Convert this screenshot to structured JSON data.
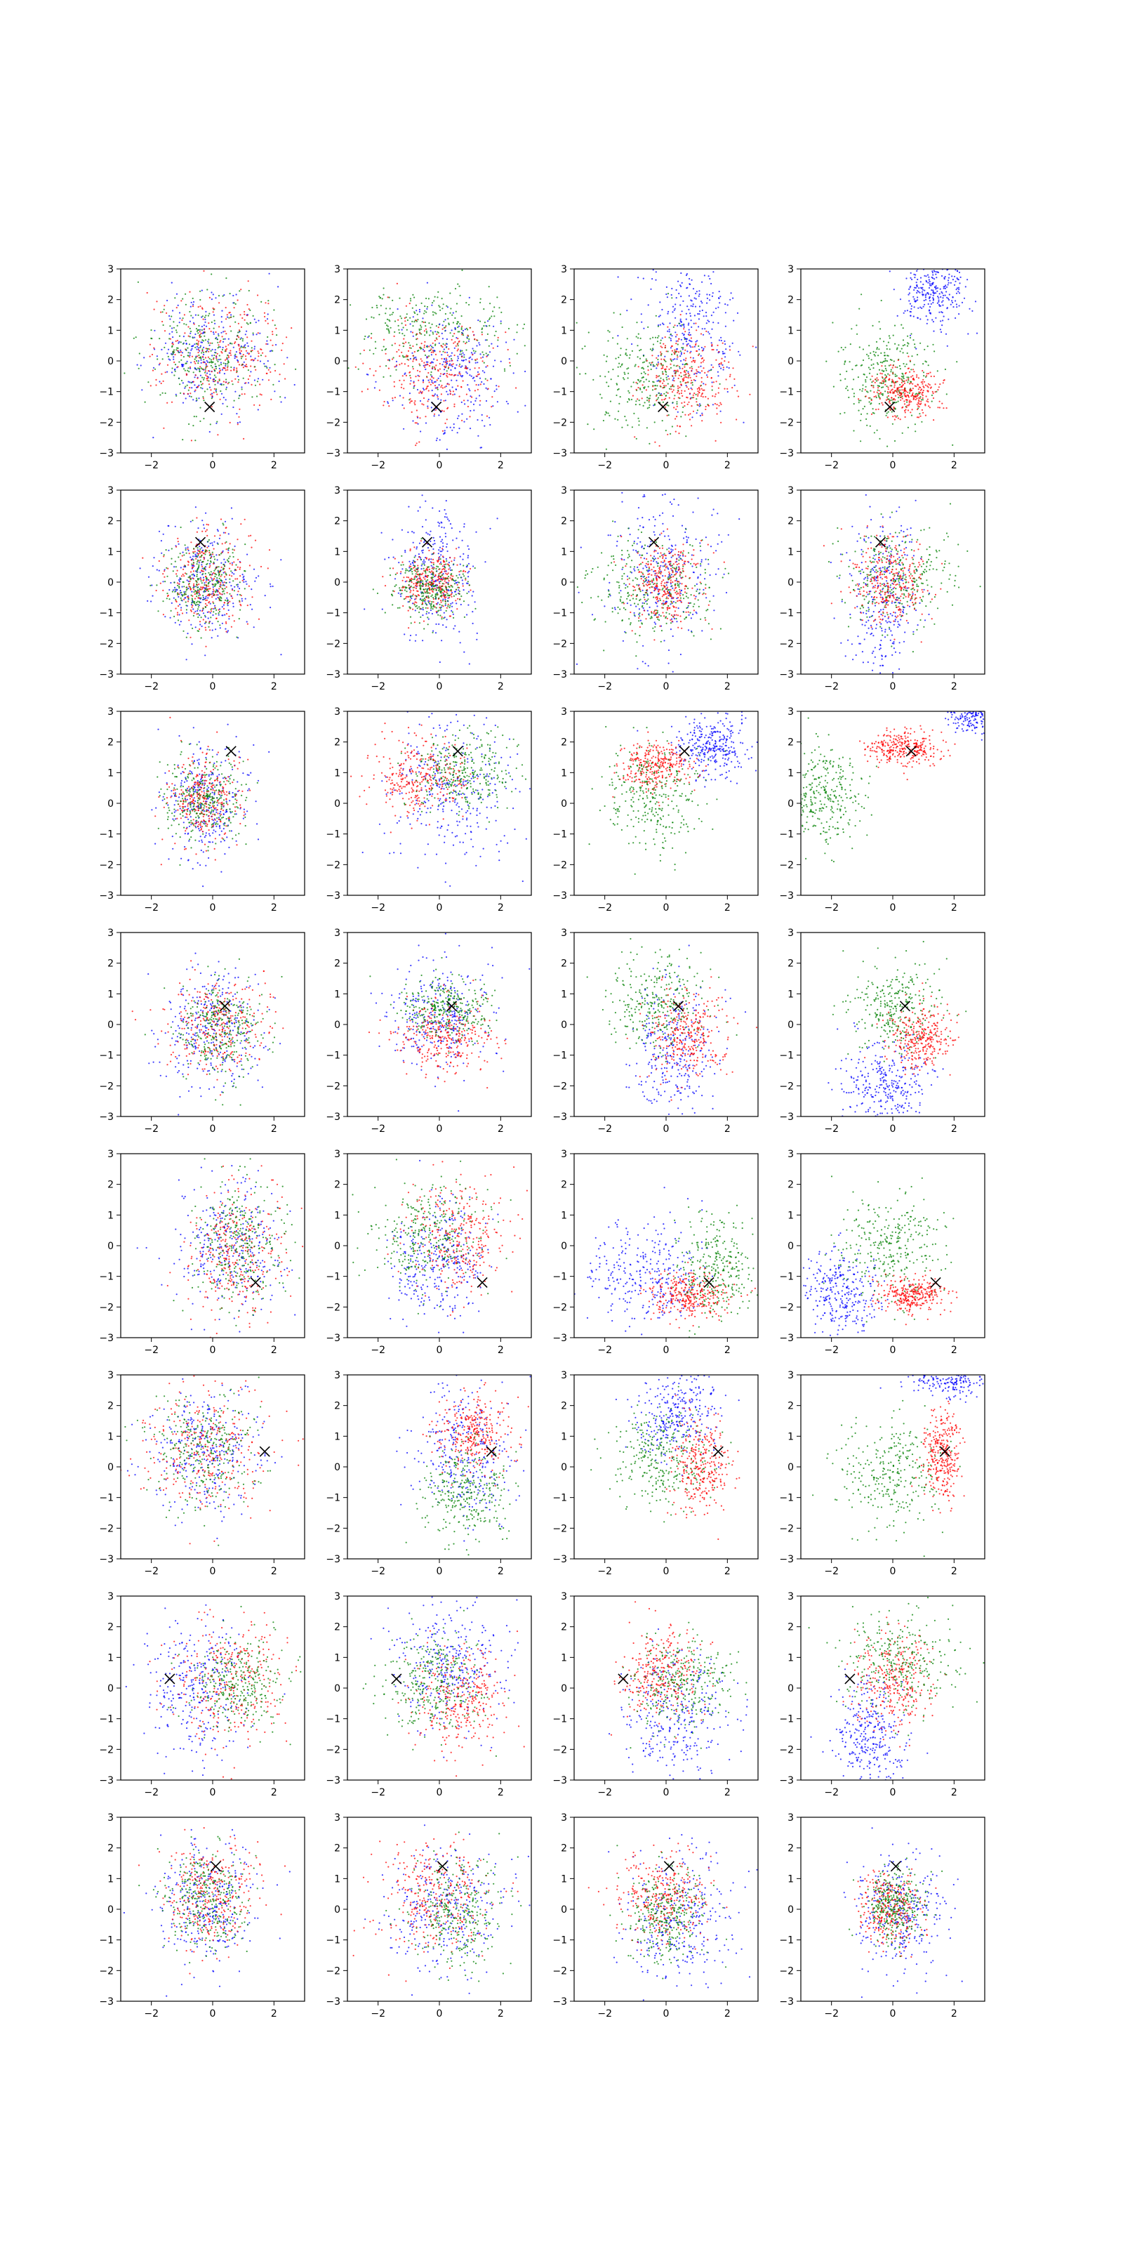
{
  "chart_data": {
    "type": "scatter",
    "layout_grid": {
      "rows": 8,
      "cols": 4
    },
    "shared_axes": {
      "xlim": [
        -3,
        3
      ],
      "ylim": [
        -3,
        3
      ],
      "xticks": [
        -2,
        0,
        2
      ],
      "yticks": [
        -3,
        -2,
        -1,
        0,
        1,
        2,
        3
      ],
      "grid": false
    },
    "colors": {
      "series_blue": "#0000ff",
      "series_red": "#ff0000",
      "series_green": "#008000",
      "marker": "#000000",
      "axis": "#000000"
    },
    "marker_symbol": "x",
    "rows": [
      {
        "marker": [
          -0.1,
          -1.5
        ],
        "panels": [
          [
            {
              "color": "blue",
              "cx": 0.0,
              "cy": 0.2,
              "sx": 1.0,
              "sy": 1.0,
              "n": 300
            },
            {
              "color": "red",
              "cx": 0.3,
              "cy": 0.2,
              "sx": 1.0,
              "sy": 1.0,
              "n": 300
            },
            {
              "color": "green",
              "cx": -0.2,
              "cy": 0.3,
              "sx": 1.0,
              "sy": 1.0,
              "n": 300
            }
          ],
          [
            {
              "color": "green",
              "cx": -0.1,
              "cy": 1.0,
              "sx": 1.2,
              "sy": 0.8,
              "n": 300
            },
            {
              "color": "blue",
              "cx": 0.4,
              "cy": -0.4,
              "sx": 1.0,
              "sy": 1.0,
              "n": 300
            },
            {
              "color": "red",
              "cx": -0.2,
              "cy": -0.3,
              "sx": 1.0,
              "sy": 0.9,
              "n": 300
            }
          ],
          [
            {
              "color": "blue",
              "cx": 0.8,
              "cy": 1.0,
              "sx": 0.8,
              "sy": 1.2,
              "n": 300
            },
            {
              "color": "green",
              "cx": -0.5,
              "cy": -0.6,
              "sx": 0.9,
              "sy": 0.9,
              "n": 300
            },
            {
              "color": "red",
              "cx": 0.7,
              "cy": -0.6,
              "sx": 0.7,
              "sy": 0.8,
              "n": 300
            }
          ],
          [
            {
              "color": "blue",
              "cx": 1.3,
              "cy": 2.3,
              "sx": 0.6,
              "sy": 0.6,
              "n": 280
            },
            {
              "color": "green",
              "cx": -0.2,
              "cy": -0.5,
              "sx": 0.8,
              "sy": 0.8,
              "n": 320
            },
            {
              "color": "red",
              "cx": 0.4,
              "cy": -1.0,
              "sx": 0.6,
              "sy": 0.4,
              "n": 300
            }
          ]
        ]
      },
      {
        "marker": [
          -0.4,
          1.3
        ],
        "panels": [
          [
            {
              "color": "blue",
              "cx": -0.2,
              "cy": 0.0,
              "sx": 0.8,
              "sy": 1.0,
              "n": 300
            },
            {
              "color": "red",
              "cx": -0.2,
              "cy": 0.1,
              "sx": 0.7,
              "sy": 0.8,
              "n": 300
            },
            {
              "color": "green",
              "cx": -0.3,
              "cy": 0.0,
              "sx": 0.6,
              "sy": 0.7,
              "n": 300
            }
          ],
          [
            {
              "color": "blue",
              "cx": -0.1,
              "cy": 0.3,
              "sx": 0.7,
              "sy": 1.1,
              "n": 300
            },
            {
              "color": "red",
              "cx": -0.2,
              "cy": 0.0,
              "sx": 0.5,
              "sy": 0.5,
              "n": 300
            },
            {
              "color": "green",
              "cx": -0.3,
              "cy": -0.2,
              "sx": 0.6,
              "sy": 0.5,
              "n": 300
            }
          ],
          [
            {
              "color": "blue",
              "cx": -0.1,
              "cy": 0.2,
              "sx": 0.9,
              "sy": 1.3,
              "n": 300
            },
            {
              "color": "green",
              "cx": -0.4,
              "cy": -0.2,
              "sx": 1.0,
              "sy": 0.8,
              "n": 300
            },
            {
              "color": "red",
              "cx": 0.0,
              "cy": 0.0,
              "sx": 0.6,
              "sy": 0.7,
              "n": 300
            }
          ],
          [
            {
              "color": "blue",
              "cx": -0.3,
              "cy": -0.5,
              "sx": 0.6,
              "sy": 1.3,
              "n": 300
            },
            {
              "color": "green",
              "cx": 0.2,
              "cy": 0.2,
              "sx": 0.9,
              "sy": 0.8,
              "n": 300
            },
            {
              "color": "red",
              "cx": -0.1,
              "cy": 0.1,
              "sx": 0.6,
              "sy": 0.7,
              "n": 300
            }
          ]
        ]
      },
      {
        "marker": [
          0.6,
          1.7
        ],
        "panels": [
          [
            {
              "color": "blue",
              "cx": -0.3,
              "cy": 0.0,
              "sx": 0.7,
              "sy": 1.0,
              "n": 300
            },
            {
              "color": "red",
              "cx": -0.3,
              "cy": 0.1,
              "sx": 0.6,
              "sy": 0.7,
              "n": 300
            },
            {
              "color": "green",
              "cx": -0.3,
              "cy": 0.1,
              "sx": 0.6,
              "sy": 0.7,
              "n": 300
            }
          ],
          [
            {
              "color": "blue",
              "cx": 0.5,
              "cy": 0.4,
              "sx": 1.1,
              "sy": 1.2,
              "n": 300
            },
            {
              "color": "red",
              "cx": -0.6,
              "cy": 0.8,
              "sx": 0.8,
              "sy": 0.6,
              "n": 300
            },
            {
              "color": "green",
              "cx": 0.8,
              "cy": 1.1,
              "sx": 0.8,
              "sy": 0.6,
              "n": 300
            }
          ],
          [
            {
              "color": "blue",
              "cx": 1.5,
              "cy": 1.9,
              "sx": 0.6,
              "sy": 0.5,
              "n": 300
            },
            {
              "color": "red",
              "cx": -0.3,
              "cy": 1.2,
              "sx": 0.6,
              "sy": 0.4,
              "n": 300
            },
            {
              "color": "green",
              "cx": -0.4,
              "cy": 0.2,
              "sx": 0.8,
              "sy": 0.9,
              "n": 300
            }
          ],
          [
            {
              "color": "blue",
              "cx": 2.6,
              "cy": 2.9,
              "sx": 0.4,
              "sy": 0.3,
              "n": 200
            },
            {
              "color": "red",
              "cx": 0.3,
              "cy": 1.8,
              "sx": 0.6,
              "sy": 0.3,
              "n": 300
            },
            {
              "color": "green",
              "cx": -2.2,
              "cy": 0.2,
              "sx": 0.6,
              "sy": 0.8,
              "n": 300
            }
          ]
        ]
      },
      {
        "marker": [
          0.4,
          0.6
        ],
        "panels": [
          [
            {
              "color": "blue",
              "cx": 0.0,
              "cy": -0.1,
              "sx": 0.8,
              "sy": 1.0,
              "n": 300
            },
            {
              "color": "red",
              "cx": 0.1,
              "cy": -0.1,
              "sx": 0.8,
              "sy": 0.8,
              "n": 300
            },
            {
              "color": "green",
              "cx": 0.2,
              "cy": -0.2,
              "sx": 0.7,
              "sy": 0.8,
              "n": 300
            }
          ],
          [
            {
              "color": "blue",
              "cx": 0.0,
              "cy": 0.2,
              "sx": 0.8,
              "sy": 0.9,
              "n": 300
            },
            {
              "color": "red",
              "cx": 0.2,
              "cy": -0.4,
              "sx": 0.8,
              "sy": 0.6,
              "n": 300
            },
            {
              "color": "green",
              "cx": 0.2,
              "cy": 0.5,
              "sx": 0.7,
              "sy": 0.5,
              "n": 300
            }
          ],
          [
            {
              "color": "blue",
              "cx": 0.3,
              "cy": -1.0,
              "sx": 0.7,
              "sy": 1.2,
              "n": 300
            },
            {
              "color": "green",
              "cx": -0.2,
              "cy": 0.7,
              "sx": 0.8,
              "sy": 0.8,
              "n": 300
            },
            {
              "color": "red",
              "cx": 0.7,
              "cy": -0.4,
              "sx": 0.6,
              "sy": 0.7,
              "n": 300
            }
          ],
          [
            {
              "color": "blue",
              "cx": -0.3,
              "cy": -2.0,
              "sx": 0.7,
              "sy": 0.7,
              "n": 300
            },
            {
              "color": "green",
              "cx": 0.1,
              "cy": 0.5,
              "sx": 0.8,
              "sy": 0.7,
              "n": 300
            },
            {
              "color": "red",
              "cx": 0.9,
              "cy": -0.4,
              "sx": 0.5,
              "sy": 0.5,
              "n": 300
            }
          ]
        ]
      },
      {
        "marker": [
          1.4,
          -1.2
        ],
        "panels": [
          [
            {
              "color": "blue",
              "cx": 0.5,
              "cy": 0.0,
              "sx": 0.9,
              "sy": 1.1,
              "n": 300
            },
            {
              "color": "red",
              "cx": 0.8,
              "cy": -0.2,
              "sx": 0.8,
              "sy": 1.0,
              "n": 300
            },
            {
              "color": "green",
              "cx": 0.9,
              "cy": 0.0,
              "sx": 0.8,
              "sy": 1.0,
              "n": 300
            }
          ],
          [
            {
              "color": "blue",
              "cx": 0.0,
              "cy": -0.5,
              "sx": 0.8,
              "sy": 1.0,
              "n": 300
            },
            {
              "color": "red",
              "cx": 0.6,
              "cy": 0.3,
              "sx": 0.8,
              "sy": 0.9,
              "n": 300
            },
            {
              "color": "green",
              "cx": -0.4,
              "cy": 0.4,
              "sx": 0.9,
              "sy": 0.8,
              "n": 300
            }
          ],
          [
            {
              "color": "blue",
              "cx": -0.7,
              "cy": -0.9,
              "sx": 1.0,
              "sy": 0.9,
              "n": 300
            },
            {
              "color": "green",
              "cx": 1.6,
              "cy": -0.7,
              "sx": 0.6,
              "sy": 0.8,
              "n": 300
            },
            {
              "color": "red",
              "cx": 0.8,
              "cy": -1.6,
              "sx": 0.6,
              "sy": 0.4,
              "n": 300
            }
          ],
          [
            {
              "color": "blue",
              "cx": -1.6,
              "cy": -1.6,
              "sx": 0.6,
              "sy": 0.7,
              "n": 300
            },
            {
              "color": "green",
              "cx": -0.1,
              "cy": 0.0,
              "sx": 0.8,
              "sy": 0.8,
              "n": 300
            },
            {
              "color": "red",
              "cx": 0.6,
              "cy": -1.6,
              "sx": 0.6,
              "sy": 0.3,
              "n": 300
            }
          ]
        ]
      },
      {
        "marker": [
          1.7,
          0.5
        ],
        "panels": [
          [
            {
              "color": "blue",
              "cx": -0.2,
              "cy": 0.5,
              "sx": 0.9,
              "sy": 1.0,
              "n": 300
            },
            {
              "color": "red",
              "cx": -0.2,
              "cy": 0.5,
              "sx": 1.0,
              "sy": 1.0,
              "n": 300
            },
            {
              "color": "green",
              "cx": -0.3,
              "cy": 0.6,
              "sx": 0.9,
              "sy": 0.9,
              "n": 300
            }
          ],
          [
            {
              "color": "blue",
              "cx": 0.8,
              "cy": 0.5,
              "sx": 0.8,
              "sy": 1.2,
              "n": 300
            },
            {
              "color": "red",
              "cx": 1.1,
              "cy": 1.1,
              "sx": 0.6,
              "sy": 0.6,
              "n": 300
            },
            {
              "color": "green",
              "cx": 0.8,
              "cy": -0.8,
              "sx": 0.7,
              "sy": 0.8,
              "n": 300
            }
          ],
          [
            {
              "color": "blue",
              "cx": 0.4,
              "cy": 1.7,
              "sx": 0.7,
              "sy": 0.7,
              "n": 300
            },
            {
              "color": "green",
              "cx": -0.1,
              "cy": 0.3,
              "sx": 0.8,
              "sy": 0.8,
              "n": 300
            },
            {
              "color": "red",
              "cx": 1.2,
              "cy": 0.1,
              "sx": 0.5,
              "sy": 0.8,
              "n": 300
            }
          ],
          [
            {
              "color": "blue",
              "cx": 1.8,
              "cy": 2.9,
              "sx": 0.7,
              "sy": 0.3,
              "n": 220
            },
            {
              "color": "green",
              "cx": 0.0,
              "cy": -0.1,
              "sx": 0.9,
              "sy": 0.9,
              "n": 300
            },
            {
              "color": "red",
              "cx": 1.6,
              "cy": 0.3,
              "sx": 0.3,
              "sy": 0.7,
              "n": 300
            }
          ]
        ]
      },
      {
        "marker": [
          -1.4,
          0.3
        ],
        "panels": [
          [
            {
              "color": "blue",
              "cx": -0.5,
              "cy": 0.0,
              "sx": 0.9,
              "sy": 1.1,
              "n": 300
            },
            {
              "color": "red",
              "cx": 0.5,
              "cy": 0.2,
              "sx": 1.0,
              "sy": 1.0,
              "n": 300
            },
            {
              "color": "green",
              "cx": 0.8,
              "cy": 0.1,
              "sx": 0.8,
              "sy": 0.8,
              "n": 300
            }
          ],
          [
            {
              "color": "blue",
              "cx": 0.3,
              "cy": 0.8,
              "sx": 0.9,
              "sy": 1.1,
              "n": 300
            },
            {
              "color": "red",
              "cx": 0.7,
              "cy": -0.4,
              "sx": 0.8,
              "sy": 0.8,
              "n": 300
            },
            {
              "color": "green",
              "cx": -0.2,
              "cy": 0.2,
              "sx": 0.8,
              "sy": 0.8,
              "n": 300
            }
          ],
          [
            {
              "color": "blue",
              "cx": 0.3,
              "cy": -1.0,
              "sx": 0.9,
              "sy": 1.1,
              "n": 300
            },
            {
              "color": "red",
              "cx": -0.1,
              "cy": 0.5,
              "sx": 0.7,
              "sy": 0.8,
              "n": 300
            },
            {
              "color": "green",
              "cx": 0.6,
              "cy": 0.2,
              "sx": 0.8,
              "sy": 0.8,
              "n": 300
            }
          ],
          [
            {
              "color": "blue",
              "cx": -0.8,
              "cy": -1.5,
              "sx": 0.6,
              "sy": 0.9,
              "n": 300
            },
            {
              "color": "red",
              "cx": 0.0,
              "cy": 0.3,
              "sx": 0.6,
              "sy": 0.8,
              "n": 300
            },
            {
              "color": "green",
              "cx": 0.2,
              "cy": 0.8,
              "sx": 0.9,
              "sy": 0.8,
              "n": 300
            }
          ]
        ]
      },
      {
        "marker": [
          0.1,
          1.4
        ],
        "panels": [
          [
            {
              "color": "blue",
              "cx": -0.1,
              "cy": 0.2,
              "sx": 0.8,
              "sy": 1.0,
              "n": 300
            },
            {
              "color": "red",
              "cx": -0.1,
              "cy": 0.4,
              "sx": 0.8,
              "sy": 0.9,
              "n": 300
            },
            {
              "color": "green",
              "cx": -0.2,
              "cy": 0.3,
              "sx": 0.7,
              "sy": 0.8,
              "n": 300
            }
          ],
          [
            {
              "color": "blue",
              "cx": 0.2,
              "cy": 0.0,
              "sx": 1.0,
              "sy": 1.0,
              "n": 300
            },
            {
              "color": "red",
              "cx": -0.2,
              "cy": 0.3,
              "sx": 0.9,
              "sy": 0.9,
              "n": 300
            },
            {
              "color": "green",
              "cx": 0.6,
              "cy": -0.2,
              "sx": 0.8,
              "sy": 0.9,
              "n": 300
            }
          ],
          [
            {
              "color": "blue",
              "cx": 0.4,
              "cy": -0.4,
              "sx": 0.9,
              "sy": 1.1,
              "n": 300
            },
            {
              "color": "red",
              "cx": -0.1,
              "cy": 0.5,
              "sx": 0.7,
              "sy": 0.7,
              "n": 300
            },
            {
              "color": "green",
              "cx": 0.0,
              "cy": -0.2,
              "sx": 0.7,
              "sy": 0.7,
              "n": 300
            }
          ],
          [
            {
              "color": "blue",
              "cx": 0.3,
              "cy": -0.2,
              "sx": 0.8,
              "sy": 1.0,
              "n": 300
            },
            {
              "color": "red",
              "cx": -0.1,
              "cy": 0.0,
              "sx": 0.5,
              "sy": 0.6,
              "n": 300
            },
            {
              "color": "green",
              "cx": 0.1,
              "cy": 0.1,
              "sx": 0.5,
              "sy": 0.6,
              "n": 300
            }
          ]
        ]
      }
    ]
  }
}
